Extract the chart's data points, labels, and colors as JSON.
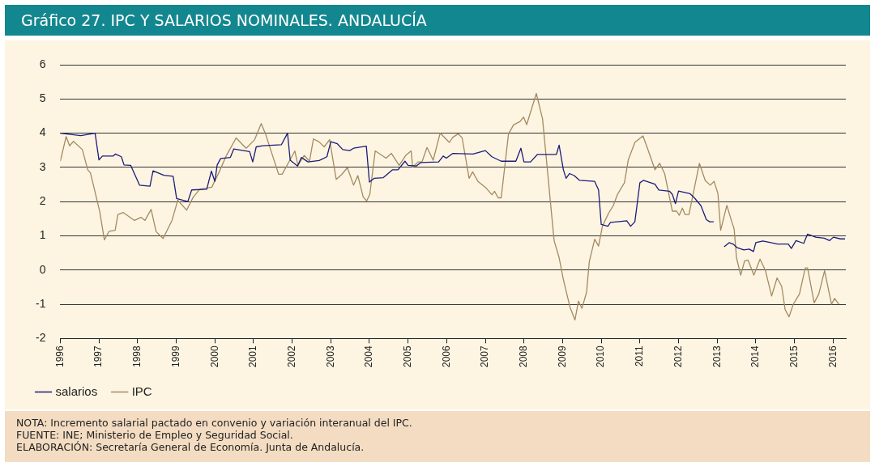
{
  "chart_data": {
    "type": "line",
    "title": "Gráfico 27. IPC Y SALARIOS NOMINALES. ANDALUCÍA",
    "xlim": [
      1996,
      2016.33
    ],
    "xticks": [
      1996,
      1997,
      1998,
      1999,
      2000,
      2001,
      2002,
      2003,
      2004,
      2005,
      2006,
      2007,
      2008,
      2009,
      2010,
      2011,
      2012,
      2013,
      2014,
      2015,
      2016
    ],
    "ylim": [
      -2,
      6
    ],
    "yticks": [
      -2,
      -1,
      0,
      1,
      2,
      3,
      4,
      5,
      6
    ],
    "grid": "y",
    "legend": "bottom left",
    "marker": "none",
    "line_style": "solid",
    "series": [
      {
        "name": "salarios",
        "color": "#1c1c78",
        "x": [
          1996.0,
          1996.53,
          1996.9,
          1997.0,
          1997.09,
          1997.36,
          1997.43,
          1997.58,
          1997.65,
          1997.82,
          1998.05,
          1998.32,
          1998.4,
          1998.68,
          1998.92,
          1999.01,
          1999.3,
          1999.4,
          1999.79,
          1999.91,
          2000.0,
          2000.06,
          2000.15,
          2000.4,
          2000.49,
          2000.9,
          2000.98,
          2001.07,
          2001.24,
          2001.72,
          2001.88,
          2001.95,
          2002.14,
          2002.24,
          2002.41,
          2002.7,
          2002.9,
          2003.0,
          2003.17,
          2003.31,
          2003.49,
          2003.59,
          2003.92,
          2004.0,
          2004.12,
          2004.36,
          2004.6,
          2004.74,
          2004.92,
          2005.0,
          2005.21,
          2005.33,
          2005.79,
          2005.91,
          2005.99,
          2006.16,
          2006.68,
          2007.0,
          2007.17,
          2007.41,
          2007.79,
          2007.92,
          2008.0,
          2008.17,
          2008.35,
          2008.84,
          2008.91,
          2009.02,
          2009.09,
          2009.18,
          2009.3,
          2009.44,
          2009.83,
          2009.93,
          2010.0,
          2010.17,
          2010.24,
          2010.66,
          2010.76,
          2010.87,
          2011.0,
          2011.09,
          2011.39,
          2011.49,
          2011.77,
          2011.84,
          2011.92,
          2012.0,
          2012.3,
          2012.41,
          2012.58,
          2012.72,
          2012.81,
          2012.91,
          2013.05,
          2013.18,
          2013.31,
          2013.41,
          2013.52,
          2013.69,
          2013.83,
          2013.94,
          2014.0,
          2014.18,
          2014.39,
          2014.56,
          2014.84,
          2014.92,
          2015.04,
          2015.24,
          2015.34,
          2015.55,
          2015.77,
          2015.91,
          2016.01,
          2016.19,
          2016.31
        ],
        "values": [
          4.0,
          3.93,
          4.0,
          3.22,
          3.33,
          3.33,
          3.39,
          3.31,
          3.07,
          3.06,
          2.48,
          2.45,
          2.9,
          2.77,
          2.74,
          2.09,
          2.0,
          2.34,
          2.36,
          2.89,
          2.59,
          3.07,
          3.26,
          3.29,
          3.54,
          3.46,
          3.16,
          3.6,
          3.63,
          3.66,
          4.0,
          3.21,
          3.04,
          3.29,
          3.16,
          3.2,
          3.31,
          3.75,
          3.69,
          3.52,
          3.49,
          3.56,
          3.62,
          2.57,
          2.68,
          2.7,
          2.93,
          2.93,
          3.18,
          3.06,
          3.04,
          3.14,
          3.16,
          3.33,
          3.27,
          3.41,
          3.39,
          3.49,
          3.31,
          3.18,
          3.18,
          3.56,
          3.16,
          3.16,
          3.38,
          3.38,
          3.65,
          2.93,
          2.68,
          2.82,
          2.76,
          2.62,
          2.59,
          2.34,
          1.33,
          1.28,
          1.39,
          1.44,
          1.28,
          1.41,
          2.55,
          2.62,
          2.51,
          2.34,
          2.3,
          2.21,
          1.94,
          2.31,
          2.23,
          2.11,
          1.88,
          1.47,
          1.41,
          1.41,
          null,
          0.68,
          0.8,
          0.76,
          0.65,
          0.59,
          0.61,
          0.54,
          0.8,
          0.85,
          0.8,
          0.76,
          0.76,
          0.63,
          0.86,
          0.78,
          1.05,
          0.96,
          0.93,
          0.86,
          0.96,
          0.91,
          0.91
        ]
      },
      {
        "name": "IPC",
        "color": "#a38a62",
        "x": [
          1996.0,
          1996.15,
          1996.24,
          1996.34,
          1996.57,
          1996.71,
          1996.78,
          1997.02,
          1997.14,
          1997.26,
          1997.42,
          1997.49,
          1997.63,
          1997.92,
          1998.09,
          1998.19,
          1998.35,
          1998.48,
          1998.66,
          1998.89,
          1999.04,
          1999.27,
          1999.44,
          1999.61,
          1999.92,
          2000.1,
          2000.3,
          2000.55,
          2000.81,
          2001.03,
          2001.2,
          2001.31,
          2001.48,
          2001.65,
          2001.74,
          2001.97,
          2002.07,
          2002.15,
          2002.31,
          2002.45,
          2002.55,
          2002.69,
          2002.83,
          2002.97,
          2003.14,
          2003.28,
          2003.43,
          2003.59,
          2003.7,
          2003.84,
          2003.93,
          2004.01,
          2004.15,
          2004.43,
          2004.57,
          2004.77,
          2004.94,
          2005.08,
          2005.12,
          2005.26,
          2005.36,
          2005.49,
          2005.65,
          2005.83,
          2006.07,
          2006.16,
          2006.3,
          2006.4,
          2006.58,
          2006.67,
          2006.81,
          2007.0,
          2007.17,
          2007.24,
          2007.33,
          2007.41,
          2007.6,
          2007.73,
          2007.9,
          2007.99,
          2008.07,
          2008.32,
          2008.48,
          2008.56,
          2008.68,
          2008.78,
          2008.91,
          2009.02,
          2009.19,
          2009.32,
          2009.41,
          2009.5,
          2009.62,
          2009.69,
          2009.83,
          2009.93,
          2010.03,
          2010.19,
          2010.31,
          2010.42,
          2010.6,
          2010.7,
          2010.87,
          2011.08,
          2011.22,
          2011.39,
          2011.51,
          2011.64,
          2011.84,
          2011.95,
          2012.02,
          2012.1,
          2012.17,
          2012.27,
          2012.54,
          2012.69,
          2012.82,
          2012.92,
          2013.02,
          2013.09,
          2013.25,
          2013.37,
          2013.44,
          2013.5,
          2013.61,
          2013.71,
          2013.8,
          2013.95,
          2014.11,
          2014.25,
          2014.41,
          2014.55,
          2014.67,
          2014.76,
          2014.86,
          2014.97,
          2015.13,
          2015.28,
          2015.34,
          2015.51,
          2015.63,
          2015.78,
          2015.96,
          2016.04,
          2016.15
        ],
        "values": [
          3.18,
          3.9,
          3.63,
          3.76,
          3.52,
          2.93,
          2.84,
          1.71,
          0.88,
          1.13,
          1.16,
          1.62,
          1.68,
          1.45,
          1.54,
          1.45,
          1.77,
          1.12,
          0.92,
          1.45,
          2.04,
          1.75,
          2.13,
          2.36,
          2.42,
          2.84,
          3.35,
          3.86,
          3.56,
          3.81,
          4.28,
          3.98,
          3.39,
          2.8,
          2.8,
          3.27,
          3.48,
          3.06,
          3.35,
          3.18,
          3.83,
          3.75,
          3.6,
          3.81,
          2.65,
          2.79,
          2.99,
          2.48,
          2.76,
          2.13,
          2.02,
          2.21,
          3.48,
          3.27,
          3.41,
          3.06,
          3.35,
          3.48,
          3.01,
          3.16,
          3.16,
          3.58,
          3.21,
          4.0,
          3.73,
          3.88,
          3.98,
          3.86,
          2.68,
          2.87,
          2.59,
          2.42,
          2.2,
          2.3,
          2.11,
          2.11,
          3.98,
          4.24,
          4.34,
          4.47,
          4.25,
          5.16,
          4.42,
          3.48,
          2.04,
          0.86,
          0.36,
          -0.28,
          -1.08,
          -1.46,
          -0.91,
          -1.12,
          -0.65,
          0.24,
          0.9,
          0.7,
          1.28,
          1.66,
          1.88,
          2.21,
          2.55,
          3.22,
          3.73,
          3.92,
          3.48,
          2.93,
          3.12,
          2.82,
          1.72,
          1.72,
          1.6,
          1.81,
          1.62,
          1.62,
          3.12,
          2.62,
          2.48,
          2.59,
          2.23,
          1.16,
          1.89,
          1.44,
          1.2,
          0.36,
          -0.15,
          0.27,
          0.29,
          -0.15,
          0.32,
          -0.02,
          -0.76,
          -0.23,
          -0.48,
          -1.16,
          -1.37,
          -1.0,
          -0.7,
          0.06,
          0.06,
          -0.96,
          -0.7,
          -0.02,
          -1.0,
          -0.83,
          -1.0
        ]
      }
    ],
    "annotations": [
      "NOTA: Incremento salarial pactado en convenio y variación interanual del IPC.",
      "FUENTE: INE; Ministerio de Empleo y Seguridad Social.",
      "ELABORACIÓN: Secretaría General de Economía. Junta de Andalucía."
    ]
  }
}
